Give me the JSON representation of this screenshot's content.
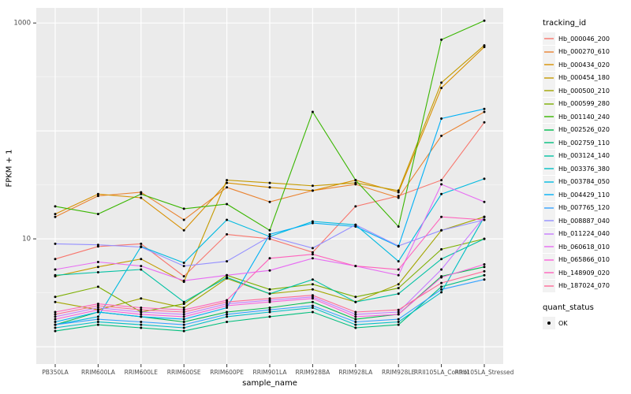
{
  "chart_data": {
    "type": "line",
    "title": "",
    "xlabel": "sample_name",
    "ylabel": "FPKM + 1",
    "y_scale": "log10",
    "y_ticks": [
      10,
      1000
    ],
    "ylim": [
      1,
      1100
    ],
    "grid": {
      "major_log": [
        0,
        1,
        2,
        3
      ],
      "minor_log": [
        0.5,
        1.5,
        2.5
      ]
    },
    "colors": {
      "panel_bg": "#EBEBEB",
      "grid_major": "#FFFFFF",
      "grid_minor": "#F6F6F6",
      "tick_label": "#4D4D4D",
      "tick_mark": "#333333",
      "point": "#000000",
      "key_bg": "#F2F2F2"
    },
    "categories": [
      "PB350LA",
      "RRIM600LA",
      "RRIM600LE",
      "RRIM600SE",
      "RRIM600PE",
      "RRIM901LA",
      "RRIM928BA",
      "RRIM928LA",
      "RRIM928LE",
      "RRII105LA_Control",
      "RRII105LA_Stressed"
    ],
    "legend": {
      "title": "tracking_id",
      "position": "right"
    },
    "quant_legend": {
      "title": "quant_status",
      "items": [
        {
          "label": "OK",
          "marker": "point",
          "color": "#000000"
        }
      ]
    },
    "series": [
      {
        "name": "Hb_000046_200",
        "color": "#F8766D",
        "values": [
          6.5,
          8.5,
          9,
          4.5,
          11,
          10,
          7.5,
          20,
          25,
          35,
          120
        ]
      },
      {
        "name": "Hb_000270_610",
        "color": "#EA8331",
        "values": [
          16,
          25,
          27,
          15,
          30,
          22,
          28,
          32,
          24,
          90,
          150
        ]
      },
      {
        "name": "Hb_000434_020",
        "color": "#D89000",
        "values": [
          17,
          26,
          24,
          12,
          33,
          30,
          28,
          35,
          27,
          250,
          600
        ]
      },
      {
        "name": "Hb_000454_180",
        "color": "#C49A00",
        "values": [
          4.5,
          5.5,
          6.5,
          4,
          35,
          33,
          31,
          33,
          28,
          280,
          620
        ]
      },
      {
        "name": "Hb_000500_210",
        "color": "#A3A500",
        "values": [
          2.6,
          2.2,
          2.8,
          2.3,
          4.3,
          3.1,
          3.4,
          2.6,
          3.8,
          12,
          16
        ]
      },
      {
        "name": "Hb_000599_280",
        "color": "#7CAE00",
        "values": [
          2.9,
          3.6,
          2.1,
          2.5,
          4.6,
          3.4,
          3.8,
          2.9,
          3.5,
          8,
          10
        ]
      },
      {
        "name": "Hb_001140_240",
        "color": "#39B600",
        "values": [
          20,
          17,
          26,
          19,
          21,
          12,
          150,
          35,
          13,
          700,
          1050
        ]
      },
      {
        "name": "Hb_002526_020",
        "color": "#00BB4E",
        "values": [
          1.6,
          2.1,
          1.9,
          1.7,
          2.1,
          2.3,
          2.6,
          1.8,
          2.0,
          4.5,
          5.5
        ]
      },
      {
        "name": "Hb_002759_110",
        "color": "#00BF7D",
        "values": [
          1.4,
          1.6,
          1.5,
          1.4,
          1.7,
          1.9,
          2.1,
          1.5,
          1.6,
          3.6,
          4.6
        ]
      },
      {
        "name": "Hb_003124_140",
        "color": "#00C1A3",
        "values": [
          4.6,
          4.9,
          5.2,
          2.6,
          4.4,
          3.1,
          4.2,
          2.6,
          3.1,
          6.5,
          10
        ]
      },
      {
        "name": "Hb_003376_380",
        "color": "#00BFC4",
        "values": [
          1.5,
          1.7,
          1.6,
          1.5,
          1.9,
          2.1,
          2.3,
          1.6,
          1.7,
          3.2,
          16
        ]
      },
      {
        "name": "Hb_003784_050",
        "color": "#00BAE0",
        "values": [
          1.6,
          1.9,
          8.5,
          6,
          15,
          10.5,
          14.5,
          13.5,
          6.2,
          26,
          36
        ]
      },
      {
        "name": "Hb_004429_110",
        "color": "#00B0F6",
        "values": [
          1.7,
          2.1,
          1.9,
          1.8,
          2.3,
          11,
          14,
          13,
          8.5,
          130,
          160
        ]
      },
      {
        "name": "Hb_007765_120",
        "color": "#35A2FF",
        "values": [
          1.6,
          1.8,
          1.7,
          1.6,
          2.0,
          2.2,
          2.4,
          1.7,
          1.8,
          3.4,
          4.2
        ]
      },
      {
        "name": "Hb_008887_040",
        "color": "#9590FF",
        "values": [
          9,
          8.8,
          8.4,
          5.6,
          6.2,
          10.5,
          8.2,
          13.5,
          8.6,
          12,
          15
        ]
      },
      {
        "name": "Hb_011224_040",
        "color": "#C77CFF",
        "values": [
          1.9,
          2.3,
          2.1,
          2.0,
          2.5,
          2.7,
          2.9,
          2.0,
          2.1,
          5.2,
          16
        ]
      },
      {
        "name": "Hb_060618_010",
        "color": "#E76BF3",
        "values": [
          5.2,
          6.1,
          5.6,
          4.1,
          4.6,
          5.1,
          6.6,
          5.6,
          4.6,
          32,
          22
        ]
      },
      {
        "name": "Hb_065866_010",
        "color": "#FA62DB",
        "values": [
          1.8,
          2.2,
          2.0,
          1.9,
          2.4,
          2.6,
          2.8,
          1.9,
          2.0,
          4.4,
          5.8
        ]
      },
      {
        "name": "Hb_148909_020",
        "color": "#FF62BC",
        "values": [
          2.1,
          2.5,
          2.3,
          2.2,
          2.7,
          6.6,
          7.2,
          5.6,
          5.2,
          16,
          15
        ]
      },
      {
        "name": "Hb_187024_070",
        "color": "#FF6A98",
        "values": [
          2.0,
          2.4,
          2.2,
          2.1,
          2.6,
          2.8,
          3.0,
          2.1,
          2.2,
          3.9,
          5.0
        ]
      }
    ]
  }
}
